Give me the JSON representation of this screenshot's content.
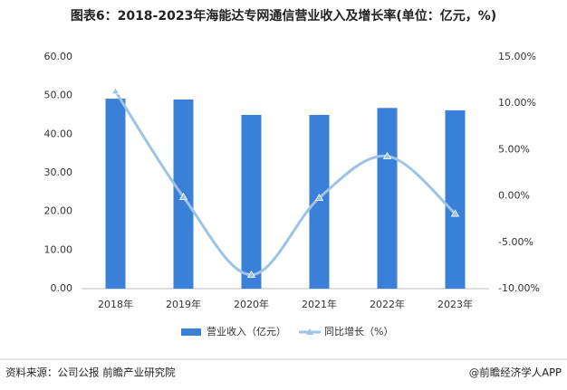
{
  "chart_data": {
    "type": "bar",
    "title": "图表6：2018-2023年海能达专网通信营业收入及增长率(单位：亿元，%)",
    "categories": [
      "2018年",
      "2019年",
      "2020年",
      "2021年",
      "2022年",
      "2023年"
    ],
    "series": [
      {
        "name": "营业收入（亿元）",
        "type": "bar",
        "color": "#3a80d8",
        "values": [
          49.2,
          49.0,
          45.0,
          45.0,
          46.8,
          46.2
        ]
      },
      {
        "name": "同比增长（%）",
        "type": "line",
        "axis": "y2",
        "color": "#9dc3e6",
        "values": [
          11.3,
          -0.1,
          -8.5,
          -0.2,
          4.3,
          -1.9
        ]
      }
    ],
    "ylim": [
      0,
      60
    ],
    "yticks": [
      {
        "value": 0,
        "label": "0.00"
      },
      {
        "value": 10,
        "label": "10.00"
      },
      {
        "value": 20,
        "label": "20.00"
      },
      {
        "value": 30,
        "label": "30.00"
      },
      {
        "value": 40,
        "label": "40.00"
      },
      {
        "value": 50,
        "label": "50.00"
      },
      {
        "value": 60,
        "label": "60.00"
      }
    ],
    "y2lim": [
      -10,
      15
    ],
    "y2ticks": [
      {
        "value": -10,
        "label": "-10.00%"
      },
      {
        "value": -5,
        "label": "-5.00%"
      },
      {
        "value": 0,
        "label": "0.00%"
      },
      {
        "value": 5,
        "label": "5.00%"
      },
      {
        "value": 10,
        "label": "10.00%"
      },
      {
        "value": 15,
        "label": "15.00%"
      }
    ],
    "grid": false,
    "source": "资料来源：公司公报 前瞻产业研究院",
    "credit": "@前瞻经济学人APP"
  }
}
